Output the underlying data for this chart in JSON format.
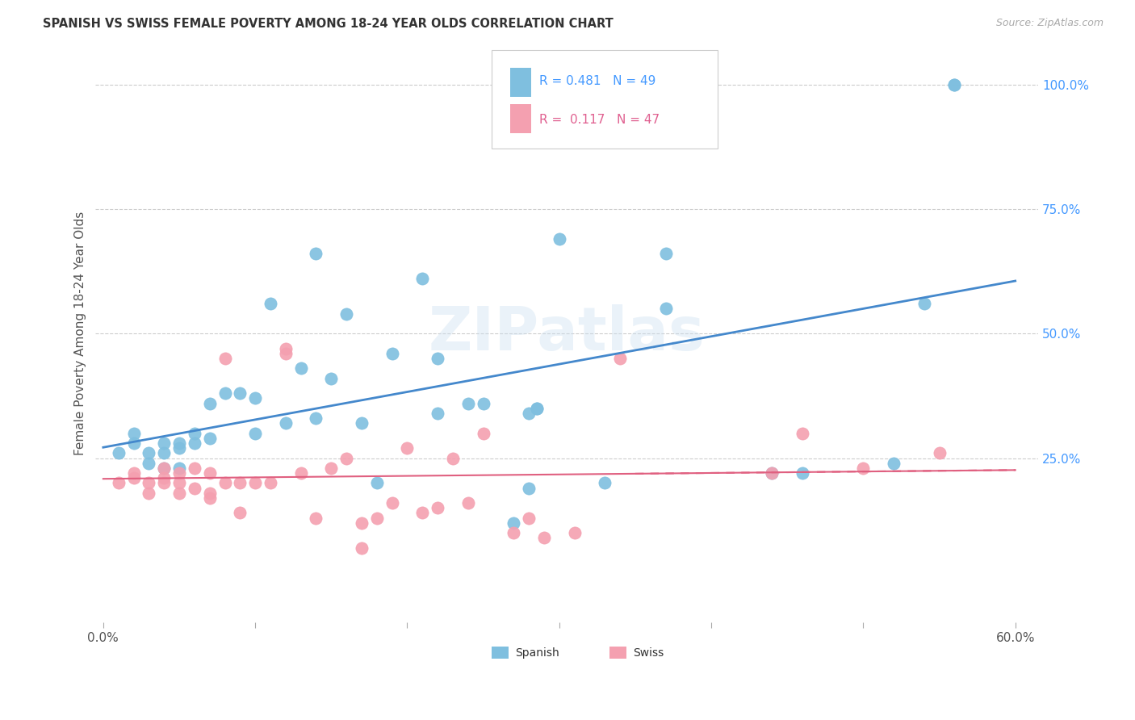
{
  "title": "SPANISH VS SWISS FEMALE POVERTY AMONG 18-24 YEAR OLDS CORRELATION CHART",
  "source": "Source: ZipAtlas.com",
  "ylabel": "Female Poverty Among 18-24 Year Olds",
  "xlim": [
    -0.005,
    0.615
  ],
  "ylim": [
    -0.08,
    1.08
  ],
  "xticks": [
    0.0,
    0.1,
    0.2,
    0.3,
    0.4,
    0.5,
    0.6
  ],
  "xticklabels": [
    "0.0%",
    "",
    "",
    "",
    "",
    "",
    "60.0%"
  ],
  "yticks_right": [
    0.25,
    0.5,
    0.75,
    1.0
  ],
  "ytick_labels_right": [
    "25.0%",
    "50.0%",
    "75.0%",
    "100.0%"
  ],
  "background_color": "#ffffff",
  "watermark_text": "ZIPatlas",
  "spanish_color": "#7fbfdf",
  "swiss_color": "#f4a0b0",
  "spanish_line_color": "#4488cc",
  "swiss_line_color": "#e06080",
  "spanish_x": [
    0.01,
    0.02,
    0.02,
    0.03,
    0.03,
    0.04,
    0.04,
    0.04,
    0.05,
    0.05,
    0.05,
    0.06,
    0.06,
    0.07,
    0.07,
    0.08,
    0.09,
    0.1,
    0.1,
    0.11,
    0.12,
    0.13,
    0.14,
    0.14,
    0.15,
    0.16,
    0.17,
    0.18,
    0.19,
    0.21,
    0.22,
    0.22,
    0.24,
    0.25,
    0.27,
    0.28,
    0.28,
    0.3,
    0.33,
    0.37,
    0.37,
    0.44,
    0.46,
    0.52,
    0.54,
    0.56,
    0.56,
    0.285,
    0.285
  ],
  "spanish_y": [
    0.26,
    0.28,
    0.3,
    0.24,
    0.26,
    0.23,
    0.26,
    0.28,
    0.23,
    0.27,
    0.28,
    0.28,
    0.3,
    0.29,
    0.36,
    0.38,
    0.38,
    0.3,
    0.37,
    0.56,
    0.32,
    0.43,
    0.33,
    0.66,
    0.41,
    0.54,
    0.32,
    0.2,
    0.46,
    0.61,
    0.34,
    0.45,
    0.36,
    0.36,
    0.12,
    0.34,
    0.19,
    0.69,
    0.2,
    0.55,
    0.66,
    0.22,
    0.22,
    0.24,
    0.56,
    1.0,
    1.0,
    0.35,
    0.35
  ],
  "swiss_x": [
    0.01,
    0.02,
    0.02,
    0.03,
    0.03,
    0.04,
    0.04,
    0.04,
    0.05,
    0.05,
    0.05,
    0.06,
    0.06,
    0.07,
    0.07,
    0.07,
    0.08,
    0.08,
    0.09,
    0.09,
    0.1,
    0.11,
    0.12,
    0.12,
    0.13,
    0.14,
    0.15,
    0.16,
    0.17,
    0.17,
    0.18,
    0.19,
    0.2,
    0.21,
    0.22,
    0.23,
    0.24,
    0.25,
    0.27,
    0.28,
    0.29,
    0.31,
    0.34,
    0.44,
    0.46,
    0.5,
    0.55
  ],
  "swiss_y": [
    0.2,
    0.21,
    0.22,
    0.18,
    0.2,
    0.2,
    0.21,
    0.23,
    0.18,
    0.2,
    0.22,
    0.19,
    0.23,
    0.17,
    0.18,
    0.22,
    0.2,
    0.45,
    0.14,
    0.2,
    0.2,
    0.2,
    0.46,
    0.47,
    0.22,
    0.13,
    0.23,
    0.25,
    0.07,
    0.12,
    0.13,
    0.16,
    0.27,
    0.14,
    0.15,
    0.25,
    0.16,
    0.3,
    0.1,
    0.13,
    0.09,
    0.1,
    0.45,
    0.22,
    0.3,
    0.23,
    0.26
  ],
  "swiss_line_start_x": 0.0,
  "swiss_line_end_x": 0.6,
  "spanish_line_start_x": 0.0,
  "spanish_line_end_x": 0.6
}
